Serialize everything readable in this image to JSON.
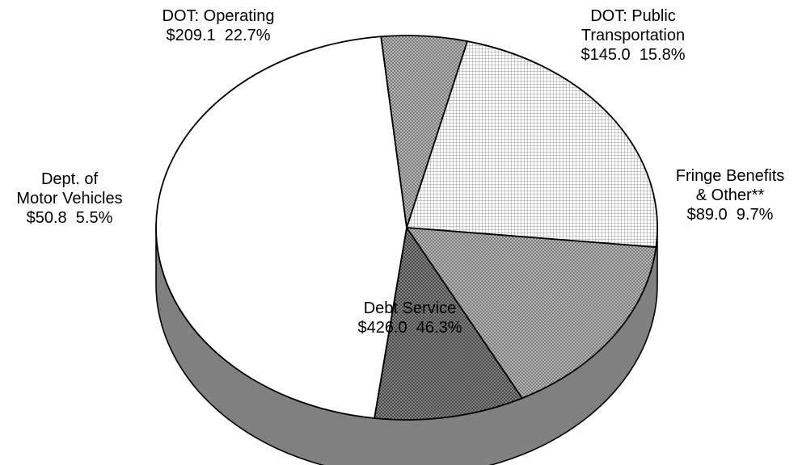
{
  "chart_data": {
    "type": "pie",
    "title": "",
    "style": "3d",
    "slices": [
      {
        "label_lines": [
          "DOT:  Operating"
        ],
        "amount": "$209.1",
        "percent": "22.7%",
        "value": 209.1,
        "pattern": "fine-grid"
      },
      {
        "label_lines": [
          "DOT: Public",
          "Transportation"
        ],
        "amount": "$145.0",
        "percent": "15.8%",
        "value": 145.0,
        "pattern": "crosshatch-light"
      },
      {
        "label_lines": [
          "Fringe Benefits",
          "& Other**"
        ],
        "amount": "$89.0",
        "percent": "9.7%",
        "value": 89.0,
        "pattern": "crosshatch-dark"
      },
      {
        "label_lines": [
          "Debt Service"
        ],
        "amount": "$426.0",
        "percent": "46.3%",
        "value": 426.0,
        "pattern": "solid-white"
      },
      {
        "label_lines": [
          "Dept. of",
          "Motor Vehicles"
        ],
        "amount": "$50.8",
        "percent": "5.5%",
        "value": 50.8,
        "pattern": "crosshatch-light"
      }
    ],
    "colors": {
      "outline": "#000000",
      "side": "#808080",
      "dark": "#555555",
      "light": "#aaaaaa"
    }
  }
}
